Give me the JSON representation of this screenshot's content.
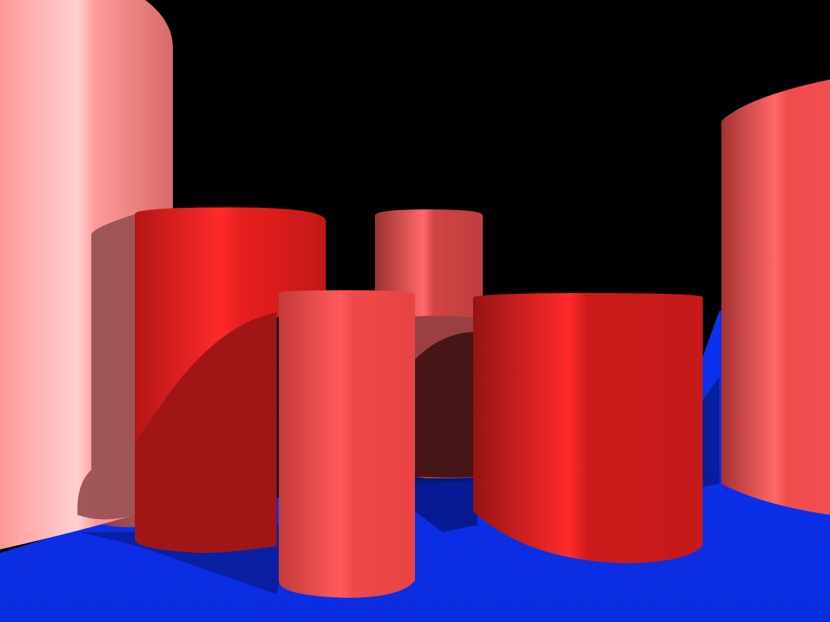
{
  "scene": {
    "background_color": "#000000",
    "floor_color": "#0c2ee6",
    "floor_shadow_color": "#0a1a8c",
    "cylinders": [
      {
        "id": "far-left-large",
        "color": "#ff8c8c",
        "highlight": "#ffd6d6",
        "shade": "#c46060"
      },
      {
        "id": "back-left-shadowed",
        "color": "#9a5050",
        "highlight": "#b86a6a",
        "shade": "#7a3838"
      },
      {
        "id": "front-left",
        "color": "#d41a1a",
        "highlight": "#ff3a3a",
        "shade": "#8f1414"
      },
      {
        "id": "back-center",
        "color": "#c84040",
        "highlight": "#ff7070",
        "shade": "#8a2a2a"
      },
      {
        "id": "front-center-narrow",
        "color": "#e54545",
        "highlight": "#ff6060",
        "shade": "#b83535"
      },
      {
        "id": "front-right",
        "color": "#c41a1a",
        "highlight": "#ff3030",
        "shade": "#8c1212"
      },
      {
        "id": "far-right-large",
        "color": "#ec4a4a",
        "highlight": "#ff7070",
        "shade": "#a83232"
      }
    ]
  }
}
